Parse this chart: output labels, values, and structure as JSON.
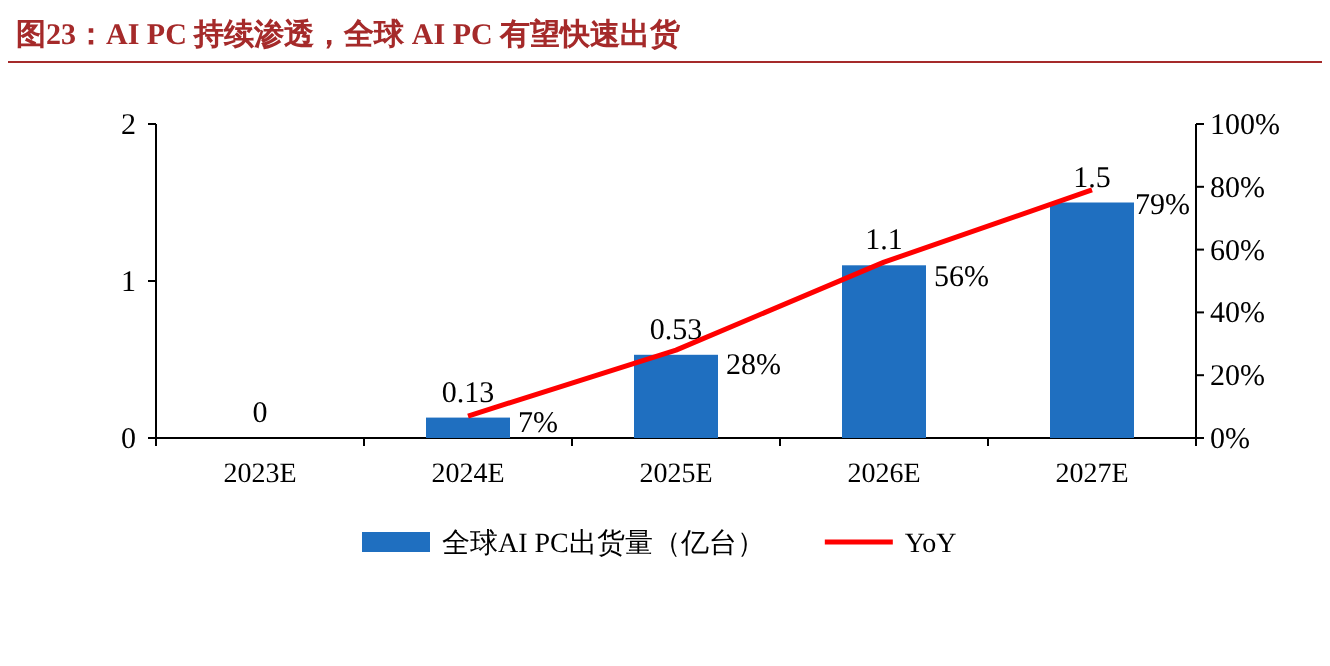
{
  "chart_data": {
    "type": "bar",
    "title": "图23：AI PC 持续渗透，全球 AI PC 有望快速出货",
    "categories": [
      "2023E",
      "2024E",
      "2025E",
      "2026E",
      "2027E"
    ],
    "series": [
      {
        "name": "全球AI PC出货量（亿台）",
        "color": "#1f6fc0",
        "values": [
          0,
          0.13,
          0.53,
          1.1,
          1.5
        ],
        "value_labels": [
          "0",
          "0.13",
          "0.53",
          "1.1",
          "1.5"
        ]
      },
      {
        "name": "YoY",
        "type": "line",
        "axis": "y2",
        "color": "#ff0000",
        "values": [
          null,
          7,
          28,
          56,
          79
        ],
        "value_labels": [
          null,
          "7%",
          "28%",
          "56%",
          "79%"
        ]
      }
    ],
    "ylim": [
      0,
      2
    ],
    "yticks": [
      0,
      1,
      2
    ],
    "y2lim": [
      0,
      100
    ],
    "y2ticks": [
      {
        "value": 0,
        "label": "0%"
      },
      {
        "value": 20,
        "label": "20%"
      },
      {
        "value": 40,
        "label": "40%"
      },
      {
        "value": 60,
        "label": "60%"
      },
      {
        "value": 80,
        "label": "80%"
      },
      {
        "value": 100,
        "label": "100%"
      }
    ],
    "legend": "bottom"
  }
}
